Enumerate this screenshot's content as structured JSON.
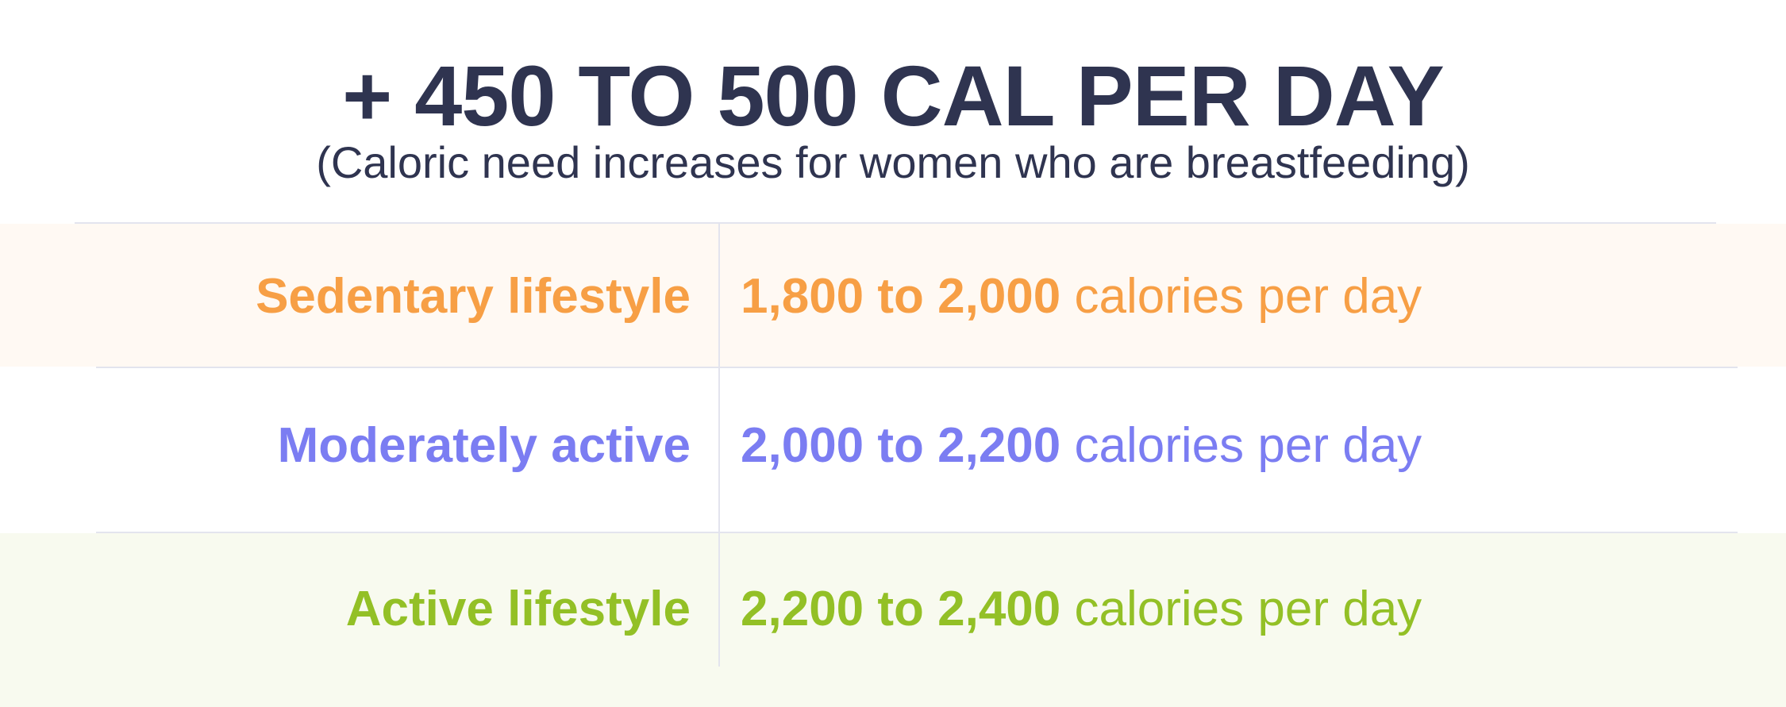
{
  "header": {
    "title": "+ 450 TO 500 CAL PER DAY",
    "subtitle": "(Caloric need increases for women who are breastfeeding)"
  },
  "colors": {
    "title": "#2f3450",
    "sedentary": "#f79f45",
    "moderate": "#7b7df2",
    "active": "#93c026",
    "rule": "#e3e4ee"
  },
  "rows": [
    {
      "label": "Sedentary lifestyle",
      "range": "1,800 to 2,000",
      "unit": "calories per day"
    },
    {
      "label": "Moderately active",
      "range": "2,000 to 2,200",
      "unit": "calories per day"
    },
    {
      "label": "Active lifestyle",
      "range": "2,200 to 2,400",
      "unit": "calories per day"
    }
  ]
}
